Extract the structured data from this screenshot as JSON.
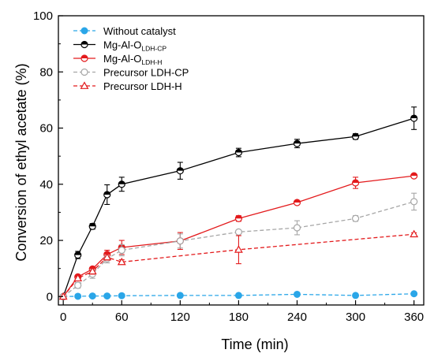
{
  "chart_data": {
    "type": "line",
    "title": "",
    "xlabel": "Time (min)",
    "ylabel": "Conversion of ethyl acetate (%)",
    "xlim": [
      -5,
      370
    ],
    "ylim": [
      -3,
      100
    ],
    "xticks": [
      0,
      60,
      120,
      180,
      240,
      300,
      360
    ],
    "yticks": [
      0,
      20,
      40,
      60,
      80,
      100
    ],
    "grid": false,
    "legend_position": "top-left",
    "series": [
      {
        "name_main": "Without catalyst",
        "name_sub": "",
        "color": "#2aa6e8",
        "marker": "filled-circle",
        "line": "dashed",
        "x": [
          0,
          15,
          30,
          45,
          60,
          120,
          180,
          240,
          300,
          360
        ],
        "y": [
          0,
          0.1,
          0.2,
          0.2,
          0.3,
          0.4,
          0.4,
          0.8,
          0.4,
          1.0
        ],
        "err": [
          0,
          0,
          0,
          0,
          0,
          0,
          0,
          0,
          0,
          0
        ]
      },
      {
        "name_main": "Mg-Al-O",
        "name_sub": "LDH-CP",
        "color": "#000000",
        "marker": "half-circle",
        "line": "solid",
        "x": [
          0,
          15,
          30,
          45,
          60,
          120,
          180,
          240,
          300,
          360
        ],
        "y": [
          0,
          14.8,
          25.0,
          36.3,
          40.0,
          44.8,
          51.3,
          54.5,
          57.0,
          63.5
        ],
        "err": [
          0,
          1.3,
          1.0,
          3.5,
          2.5,
          3.0,
          1.5,
          1.5,
          1.0,
          4.0
        ]
      },
      {
        "name_main": "Mg-Al-O",
        "name_sub": "LDH-H",
        "color": "#e31a1c",
        "marker": "half-circle",
        "line": "solid",
        "x": [
          0,
          15,
          30,
          45,
          60,
          120,
          180,
          240,
          300,
          360
        ],
        "y": [
          0,
          7.0,
          9.8,
          15.0,
          17.5,
          19.8,
          27.8,
          33.5,
          40.5,
          43.0
        ],
        "err": [
          0,
          0.5,
          0.5,
          1.5,
          2.5,
          3.0,
          1.0,
          0.5,
          2.0,
          0.5
        ]
      },
      {
        "name_main": "Precursor LDH-CP",
        "name_sub": "",
        "color": "#a6a6a6",
        "marker": "open-circle",
        "line": "dashed",
        "x": [
          0,
          15,
          30,
          45,
          60,
          120,
          180,
          240,
          300,
          360
        ],
        "y": [
          0,
          4.0,
          8.0,
          13.5,
          16.5,
          19.8,
          23.0,
          24.5,
          27.8,
          33.8
        ],
        "err": [
          0,
          1.0,
          1.5,
          1.5,
          2.0,
          2.5,
          0.5,
          2.5,
          1.0,
          3.0
        ]
      },
      {
        "name_main": "Precursor LDH-H",
        "name_sub": "",
        "color": "#e31a1c",
        "marker": "open-triangle",
        "line": "dashed",
        "x": [
          0,
          15,
          30,
          45,
          60,
          180,
          360
        ],
        "y": [
          0,
          6.5,
          9.0,
          14.0,
          12.3,
          16.7,
          22.2
        ],
        "err": [
          0,
          0.5,
          1.0,
          1.0,
          0.8,
          5.0,
          0.5
        ]
      }
    ]
  }
}
